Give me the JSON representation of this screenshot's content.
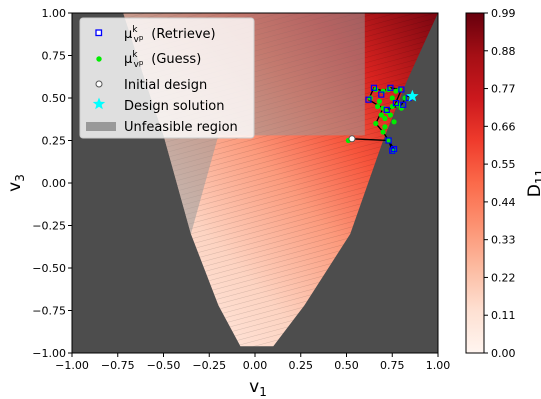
{
  "chart_data": {
    "type": "heatmap",
    "title": "",
    "xlabel": "v",
    "xlabel_sub": "1",
    "ylabel": "v",
    "ylabel_sub": "3",
    "xlim": [
      -1.0,
      1.0
    ],
    "ylim": [
      -1.0,
      1.0
    ],
    "xticks": [
      "−1.00",
      "−0.75",
      "−0.50",
      "−0.25",
      "0.00",
      "0.25",
      "0.50",
      "0.75",
      "1.00"
    ],
    "yticks": [
      "−1.00",
      "−0.75",
      "−0.50",
      "−0.25",
      "0.00",
      "0.25",
      "0.50",
      "0.75",
      "1.00"
    ],
    "grid": false,
    "legend_position": "top-left",
    "colorbar": {
      "label": "D",
      "label_sub": "11",
      "range": [
        0.0,
        0.99
      ],
      "ticks": [
        "0.00",
        "0.11",
        "0.22",
        "0.33",
        "0.44",
        "0.55",
        "0.66",
        "0.77",
        "0.88",
        "0.99"
      ],
      "colormap": "Reds"
    },
    "legend": [
      {
        "label": "(Retrieve)",
        "math": "μ",
        "sup": "k",
        "sub": "v",
        "subsup": "p",
        "marker": "square",
        "color": "#0000ff"
      },
      {
        "label": "(Guess)",
        "math": "μ",
        "sup": "k",
        "sub": "v",
        "subsup": "p",
        "marker": "dot",
        "color": "#00ee00"
      },
      {
        "label": "Initial design",
        "marker": "circle",
        "color": "#ffffff"
      },
      {
        "label": "Design solution",
        "marker": "star",
        "color": "#00ffff"
      },
      {
        "label": "Unfeasible region",
        "marker": "patch",
        "color": "#888888"
      }
    ],
    "feasible_boundary": [
      [
        -0.72,
        1.0
      ],
      [
        -0.6,
        0.6
      ],
      [
        -0.5,
        0.28
      ],
      [
        -0.35,
        -0.3
      ],
      [
        -0.2,
        -0.72
      ],
      [
        -0.08,
        -0.96
      ],
      [
        0.1,
        -0.96
      ],
      [
        0.27,
        -0.72
      ],
      [
        0.52,
        -0.3
      ],
      [
        0.7,
        0.25
      ],
      [
        0.83,
        0.6
      ],
      [
        1.0,
        1.0
      ]
    ],
    "initial_design": {
      "x": 0.53,
      "y": 0.26
    },
    "design_solution": {
      "x": 0.86,
      "y": 0.51
    },
    "trajectory": [
      [
        0.53,
        0.26
      ],
      [
        0.73,
        0.25
      ],
      [
        0.75,
        0.19
      ],
      [
        0.76,
        0.2
      ],
      [
        0.7,
        0.3
      ],
      [
        0.66,
        0.35
      ],
      [
        0.7,
        0.44
      ],
      [
        0.62,
        0.49
      ],
      [
        0.65,
        0.56
      ],
      [
        0.7,
        0.54
      ],
      [
        0.74,
        0.56
      ],
      [
        0.8,
        0.55
      ],
      [
        0.76,
        0.45
      ],
      [
        0.72,
        0.43
      ],
      [
        0.8,
        0.46
      ],
      [
        0.83,
        0.51
      ],
      [
        0.86,
        0.51
      ]
    ],
    "retrieve_points": [
      [
        0.73,
        0.25
      ],
      [
        0.75,
        0.19
      ],
      [
        0.76,
        0.2
      ],
      [
        0.62,
        0.49
      ],
      [
        0.65,
        0.56
      ],
      [
        0.74,
        0.56
      ],
      [
        0.8,
        0.55
      ],
      [
        0.72,
        0.43
      ],
      [
        0.84,
        0.5
      ],
      [
        0.77,
        0.47
      ],
      [
        0.69,
        0.52
      ],
      [
        0.81,
        0.46
      ]
    ],
    "guess_points": [
      [
        0.51,
        0.25
      ],
      [
        0.73,
        0.25
      ],
      [
        0.76,
        0.19
      ],
      [
        0.7,
        0.3
      ],
      [
        0.71,
        0.33
      ],
      [
        0.66,
        0.35
      ],
      [
        0.7,
        0.44
      ],
      [
        0.68,
        0.48
      ],
      [
        0.63,
        0.5
      ],
      [
        0.66,
        0.55
      ],
      [
        0.7,
        0.54
      ],
      [
        0.73,
        0.55
      ],
      [
        0.77,
        0.54
      ],
      [
        0.79,
        0.55
      ],
      [
        0.75,
        0.45
      ],
      [
        0.72,
        0.42
      ],
      [
        0.74,
        0.4
      ],
      [
        0.78,
        0.46
      ],
      [
        0.8,
        0.44
      ],
      [
        0.71,
        0.38
      ],
      [
        0.67,
        0.45
      ],
      [
        0.75,
        0.5
      ],
      [
        0.82,
        0.5
      ],
      [
        0.69,
        0.4
      ],
      [
        0.76,
        0.36
      ]
    ]
  }
}
